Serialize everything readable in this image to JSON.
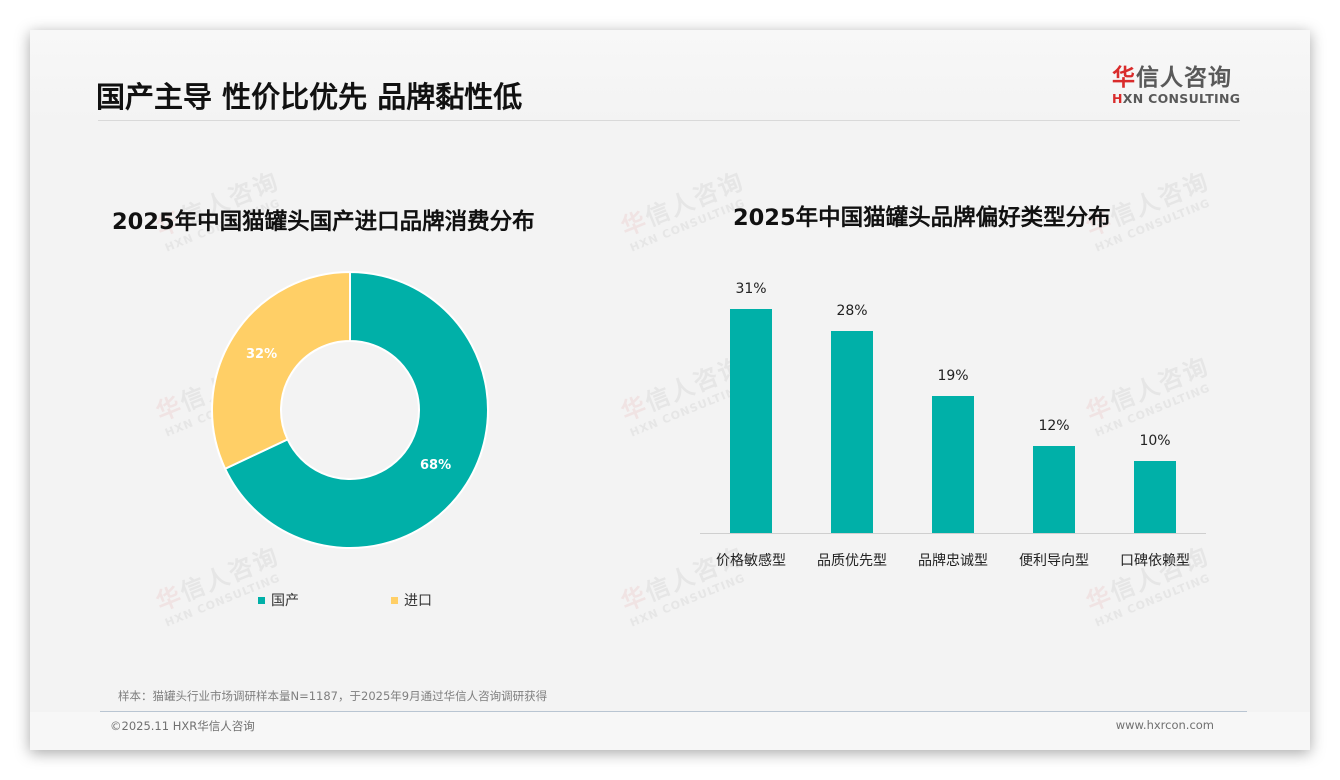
{
  "header": {
    "title": "国产主导 性价比优先 品牌黏性低",
    "logo": {
      "cn_accent": "华",
      "cn_rest": "信人咨询",
      "en_accent": "H",
      "en_rest": "XN CONSULTING"
    }
  },
  "watermark": {
    "cn_accent": "华",
    "cn_rest": "信人咨询",
    "en": "HXN CONSULTING"
  },
  "colors": {
    "domestic": "#00b0a8",
    "import": "#ffcf66",
    "bar": "#00b0a8",
    "brand_red": "#d92b2b"
  },
  "donut": {
    "title": "2025年中国猫罐头国产进口品牌消费分布",
    "slices": [
      {
        "label": "国产",
        "value": 68,
        "display": "68%"
      },
      {
        "label": "进口",
        "value": 32,
        "display": "32%"
      }
    ]
  },
  "bar_chart": {
    "title": "2025年中国猫罐头品牌偏好类型分布",
    "items": [
      {
        "label": "价格敏感型",
        "value": 31,
        "display": "31%"
      },
      {
        "label": "品质优先型",
        "value": 28,
        "display": "28%"
      },
      {
        "label": "品牌忠诚型",
        "value": 19,
        "display": "19%"
      },
      {
        "label": "便利导向型",
        "value": 12,
        "display": "12%"
      },
      {
        "label": "口碑依赖型",
        "value": 10,
        "display": "10%"
      }
    ]
  },
  "footer": {
    "note": "样本：猫罐头行业市场调研样本量N=1187，于2025年9月通过华信人咨询调研获得",
    "copyright": "©2025.11 HXR华信人咨询",
    "website": "www.hxrcon.com"
  },
  "chart_data": [
    {
      "type": "pie",
      "title": "2025年中国猫罐头国产进口品牌消费分布",
      "categories": [
        "国产",
        "进口"
      ],
      "values": [
        68,
        32
      ],
      "unit": "%",
      "donut": true,
      "legend_position": "bottom"
    },
    {
      "type": "bar",
      "title": "2025年中国猫罐头品牌偏好类型分布",
      "categories": [
        "价格敏感型",
        "品质优先型",
        "品牌忠诚型",
        "便利导向型",
        "口碑依赖型"
      ],
      "values": [
        31,
        28,
        19,
        12,
        10
      ],
      "unit": "%",
      "xlabel": "",
      "ylabel": "",
      "grid": false,
      "data_labels": true
    }
  ]
}
